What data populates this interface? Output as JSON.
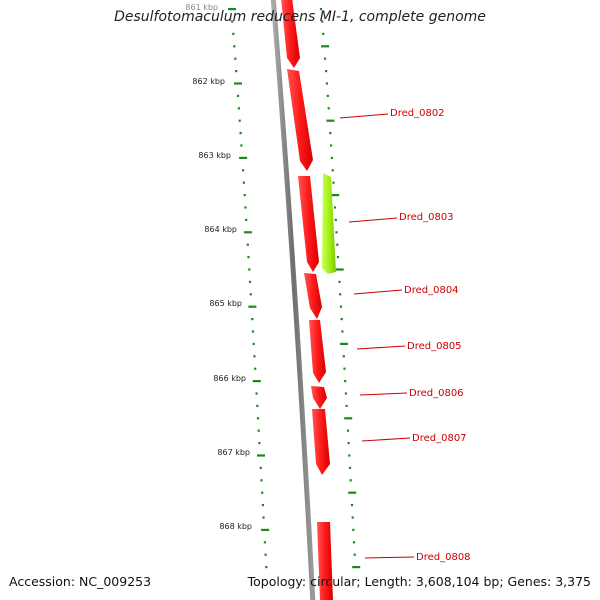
{
  "title": "Desulfotomaculum reducens MI-1, complete genome",
  "footer": {
    "accession": "Accession: NC_009253",
    "summary": "Topology: circular; Length: 3,608,104 bp; Genes: 3,375"
  },
  "colors": {
    "forward_gene": "#ff1a1a",
    "reverse_gene": "#99e600",
    "tick": "#1a8a1a",
    "backbone": "#7a7a7a",
    "label": "#cc0000"
  },
  "scale": {
    "unit": "kbp",
    "labels": [
      "861 kbp",
      "862 kbp",
      "863 kbp",
      "864 kbp",
      "865 kbp",
      "866 kbp",
      "867 kbp",
      "868 kbp"
    ]
  },
  "genes": [
    {
      "name": "",
      "strand": "+"
    },
    {
      "name": "Dred_0802",
      "strand": "+"
    },
    {
      "name": "Dred_0803",
      "strand": "-"
    },
    {
      "name": "Dred_0804",
      "strand": "+"
    },
    {
      "name": "Dred_0805",
      "strand": "+"
    },
    {
      "name": "Dred_0806",
      "strand": "+"
    },
    {
      "name": "Dred_0807",
      "strand": "+"
    },
    {
      "name": "Dred_0808",
      "strand": "+"
    }
  ]
}
